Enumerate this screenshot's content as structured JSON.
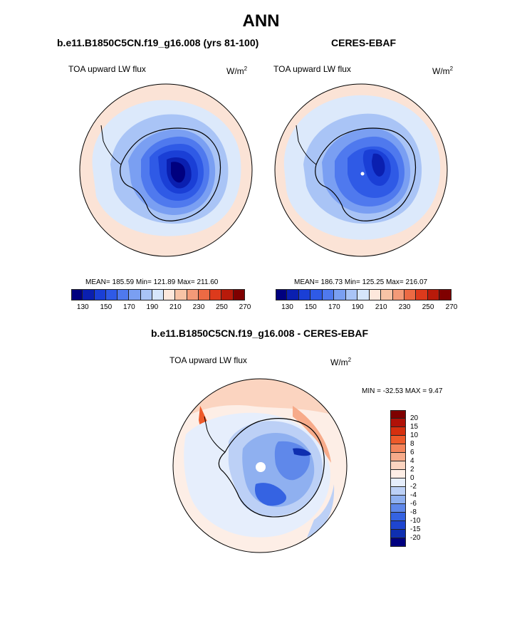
{
  "title": "ANN",
  "panels": {
    "left": {
      "title": "b.e11.B1850C5CN.f19_g16.008 (yrs 81-100)",
      "variable": "TOA upward LW flux",
      "unit_base": "W/m",
      "unit_sup": "2",
      "stats": "MEAN= 185.59  Min= 121.89  Max= 211.60"
    },
    "right": {
      "title": "CERES-EBAF",
      "variable": "TOA upward LW flux",
      "unit_base": "W/m",
      "unit_sup": "2",
      "stats": "MEAN= 186.73  Min= 125.25  Max= 216.07"
    },
    "diff": {
      "title": "b.e11.B1850C5CN.f19_g16.008 - CERES-EBAF",
      "variable": "TOA upward LW flux",
      "unit_base": "W/m",
      "unit_sup": "2",
      "stats": "MIN = -32.53 MAX =   9.47"
    }
  },
  "colorbar_top": {
    "colors": [
      "#00007f",
      "#0a1fb0",
      "#1a3fd6",
      "#2f5ae6",
      "#4f79ee",
      "#7a9ff2",
      "#a9c4f6",
      "#d6e6fb",
      "#fde8dc",
      "#f7c3a6",
      "#f39a78",
      "#ec6a44",
      "#dd3a1c",
      "#b81a0a",
      "#7f0000"
    ],
    "tick_labels": [
      "130",
      "150",
      "170",
      "190",
      "210",
      "230",
      "250",
      "270"
    ]
  },
  "colorbar_diff": {
    "colors": [
      "#7f0000",
      "#b01208",
      "#d6300f",
      "#ee5a2a",
      "#f4845a",
      "#f7ab8a",
      "#fbd4c0",
      "#fdeee6",
      "#e6eefc",
      "#bcd0f6",
      "#8fb0f0",
      "#5f88ea",
      "#3563e2",
      "#1e45cf",
      "#0f2fb0",
      "#00007f"
    ],
    "labels": [
      "20",
      "15",
      "10",
      "8",
      "6",
      "4",
      "2",
      "0",
      "-2",
      "-4",
      "-6",
      "-8",
      "-10",
      "-15",
      "-20"
    ]
  },
  "colors": {
    "ocean_outer": "#fbe3d6",
    "ocean_ring": "#dce9fb",
    "land_boundary": "#000000"
  }
}
